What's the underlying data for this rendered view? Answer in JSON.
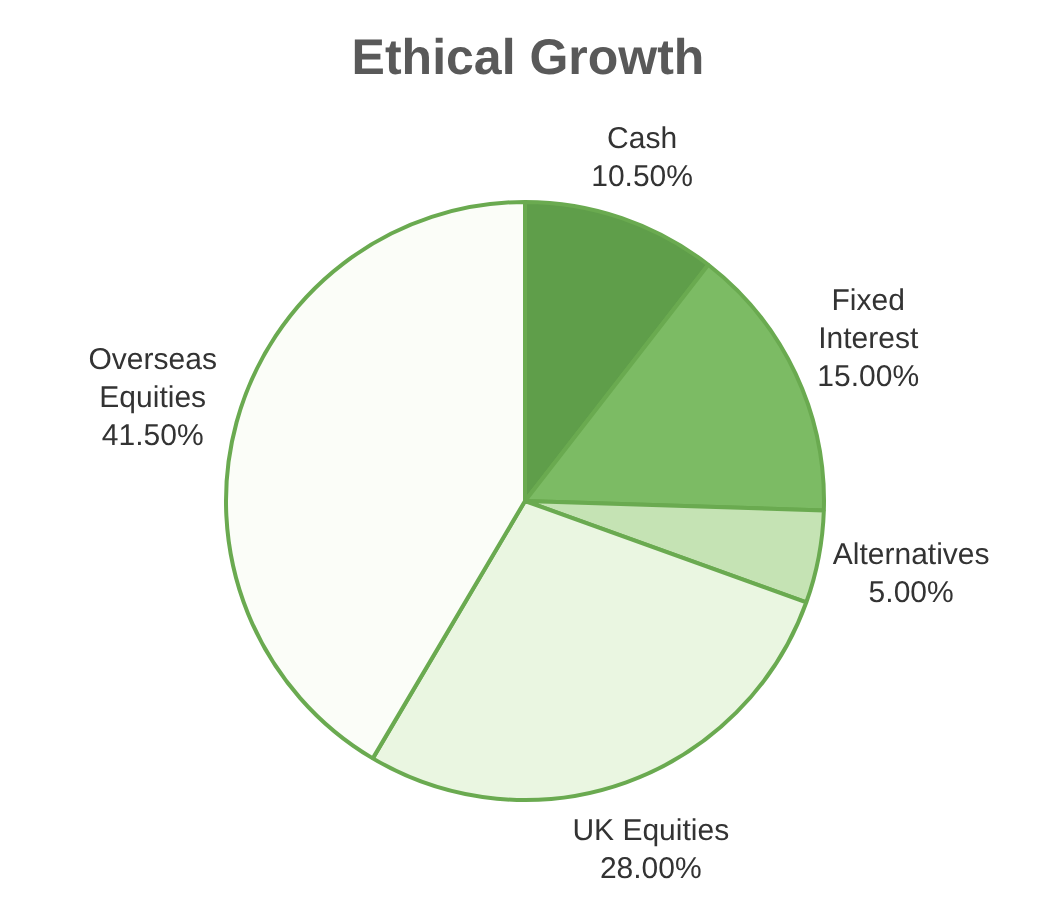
{
  "chart_data": {
    "type": "pie",
    "title": "Ethical Growth",
    "categories": [
      "Cash",
      "Fixed Interest",
      "Alternatives",
      "UK Equities",
      "Overseas Equities"
    ],
    "values": [
      10.5,
      15,
      5,
      28,
      41.5
    ],
    "value_labels": [
      "10.50%",
      "15.00%",
      "5.00%",
      "28.00%",
      "41.50%"
    ],
    "colors": [
      "#5f9e4a",
      "#7cbb64",
      "#c5e3b4",
      "#eaf6e1",
      "#fbfdf8"
    ],
    "legend": false
  }
}
